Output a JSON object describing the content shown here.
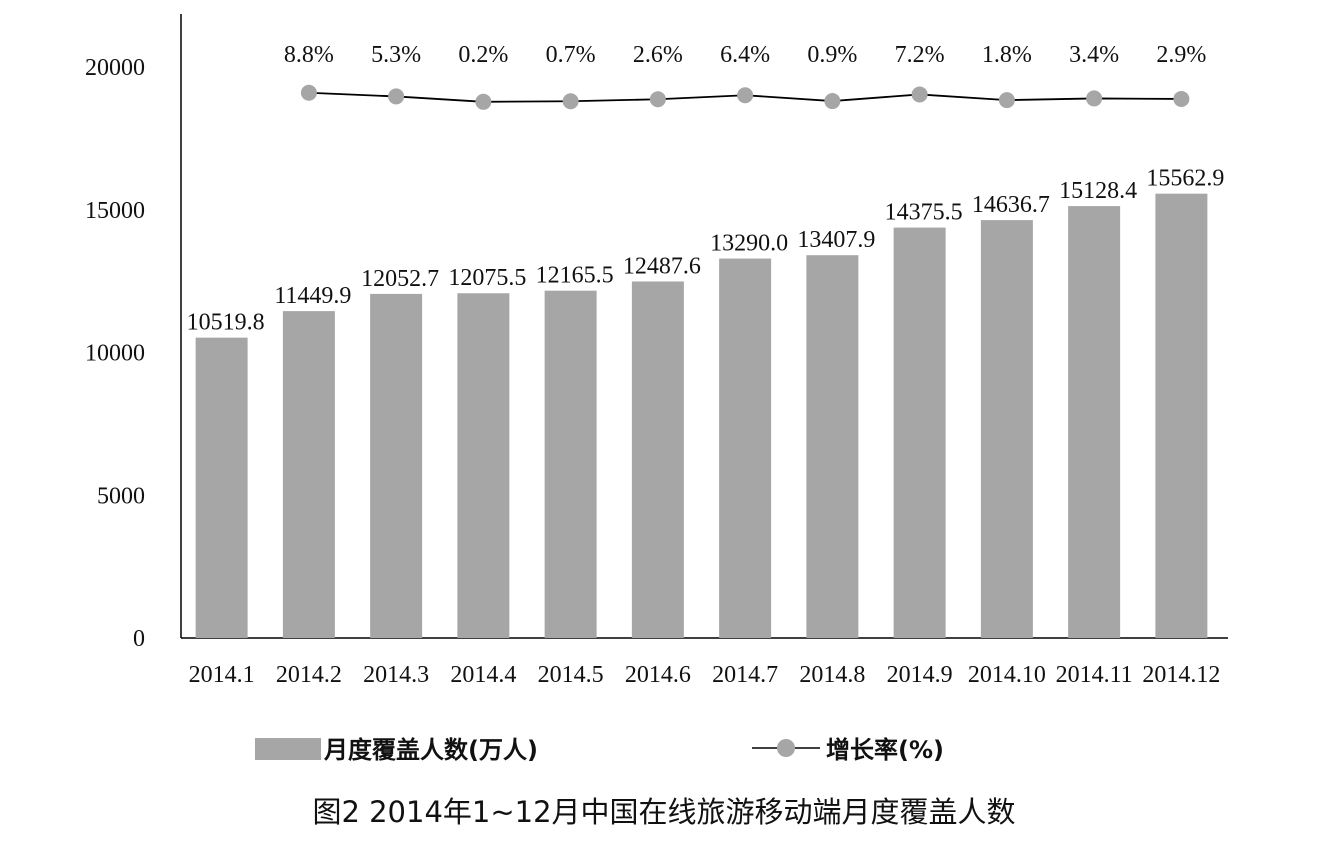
{
  "chart_data": {
    "type": "bar",
    "categories": [
      "2014.1",
      "2014.2",
      "2014.3",
      "2014.4",
      "2014.5",
      "2014.6",
      "2014.7",
      "2014.8",
      "2014.9",
      "2014.10",
      "2014.11",
      "2014.12"
    ],
    "series": [
      {
        "name": "月度覆盖人数(万人)",
        "type": "bar",
        "values": [
          10519.8,
          11449.9,
          12052.7,
          12075.5,
          12165.5,
          12487.6,
          13290.0,
          13407.9,
          14375.5,
          14636.7,
          15128.4,
          15562.9
        ],
        "labels": [
          "10519.8",
          "11449.9",
          "12052.7",
          "12075.5",
          "12165.5",
          "12487.6",
          "13290.0",
          "13407.9",
          "14375.5",
          "14636.7",
          "15128.4",
          "15562.9"
        ],
        "color": "#a6a6a6"
      },
      {
        "name": "增长率(%)",
        "type": "line",
        "values": [
          null,
          8.8,
          5.3,
          0.2,
          0.7,
          2.6,
          6.4,
          0.9,
          7.2,
          1.8,
          3.4,
          2.9
        ],
        "labels": [
          "",
          "8.8%",
          "5.3%",
          "0.2%",
          "0.7%",
          "2.6%",
          "6.4%",
          "0.9%",
          "7.2%",
          "1.8%",
          "3.4%",
          "2.9%"
        ],
        "color": "#000000",
        "marker_color": "#a6a6a6"
      }
    ],
    "yticks": [
      "0",
      "5000",
      "10000",
      "15000",
      "20000"
    ],
    "ylim": [
      0,
      22000
    ],
    "grid": false,
    "legend_position": "bottom",
    "caption": "图2 2014年1~12月中国在线旅游移动端月度覆盖人数"
  }
}
